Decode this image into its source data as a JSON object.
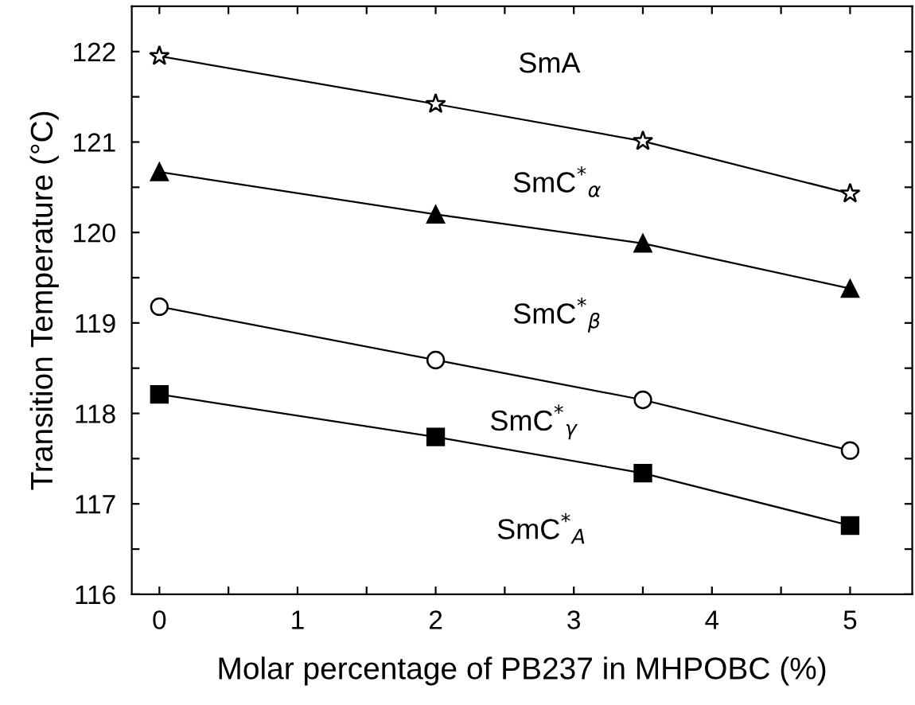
{
  "chart_data": {
    "type": "line",
    "xlabel": "Molar percentage of PB237 in MHPOBC (%)",
    "ylabel": "Transition Temperature (°C)",
    "x": [
      0,
      2,
      3.5,
      5
    ],
    "series": [
      {
        "color": "#000000",
        "marker": "star",
        "values": [
          121.95,
          121.42,
          121.01,
          120.43
        ]
      },
      {
        "color": "#000000",
        "marker": "triangle",
        "values": [
          120.67,
          120.2,
          119.88,
          119.38
        ]
      },
      {
        "color": "#000000",
        "marker": "circle",
        "values": [
          119.18,
          118.59,
          118.15,
          117.59
        ]
      },
      {
        "color": "#000000",
        "marker": "square",
        "values": [
          118.21,
          117.74,
          117.34,
          116.76
        ]
      }
    ],
    "xlim": [
      -0.2,
      5.45
    ],
    "ylim": [
      116,
      122.5
    ],
    "xticks": [
      0,
      {
        "value": 0.5,
        "label": null
      },
      1,
      {
        "value": 1.5,
        "label": null
      },
      2,
      {
        "value": 2.5,
        "label": null
      },
      3,
      {
        "value": 3.5,
        "label": null
      },
      4,
      {
        "value": 4.5,
        "label": null
      },
      5
    ],
    "yticks": [
      116,
      {
        "value": 116.5,
        "label": null
      },
      117,
      {
        "value": 117.5,
        "label": null
      },
      118,
      {
        "value": 118.5,
        "label": null
      },
      119,
      {
        "value": 119.5,
        "label": null
      },
      120,
      {
        "value": 120.5,
        "label": null
      },
      121,
      {
        "value": 121.5,
        "label": null
      },
      122
    ],
    "annotations": [
      "SmA",
      "SmC$^{*}$$_{α}$",
      "SmC$^{*}$$_{β}$",
      "SmC$^{*}$$_{γ}$",
      "SmC$^{*}$$_{A}$"
    ],
    "line_style": "solid",
    "grid": false,
    "legend": false
  }
}
